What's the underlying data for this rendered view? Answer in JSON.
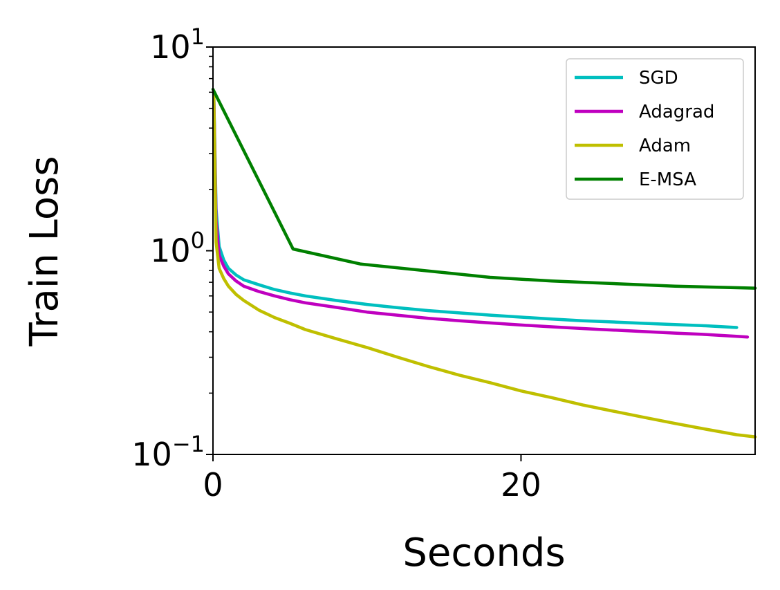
{
  "chart_data": {
    "type": "line",
    "xlabel": "Seconds",
    "ylabel": "Train Loss",
    "yscale": "log",
    "xlim": [
      0,
      35.2
    ],
    "ylim": [
      0.1,
      10
    ],
    "x_ticks": [
      {
        "value": 0,
        "label": "0"
      },
      {
        "value": 20,
        "label": "20"
      }
    ],
    "y_ticks": [
      {
        "value": 0.1,
        "base": "10",
        "exp": "−1"
      },
      {
        "value": 1,
        "base": "10",
        "exp": "0"
      },
      {
        "value": 10,
        "base": "10",
        "exp": "1"
      }
    ],
    "legend_position": "top-right",
    "grid": false,
    "series": [
      {
        "name": "SGD",
        "color": "#00bfbf",
        "x": [
          0.05,
          0.2,
          0.4,
          0.7,
          1.0,
          1.5,
          2.0,
          3.0,
          4.0,
          5.0,
          6.0,
          8.0,
          10.0,
          12.0,
          14.0,
          16.0,
          18.0,
          20.0,
          22.0,
          24.0,
          26.0,
          28.0,
          30.0,
          32.0,
          34.0
        ],
        "y": [
          6.0,
          1.6,
          1.05,
          0.9,
          0.82,
          0.76,
          0.72,
          0.68,
          0.645,
          0.62,
          0.6,
          0.57,
          0.545,
          0.525,
          0.508,
          0.495,
          0.483,
          0.472,
          0.462,
          0.453,
          0.447,
          0.44,
          0.434,
          0.428,
          0.42
        ]
      },
      {
        "name": "Adagrad",
        "color": "#bf00bf",
        "x": [
          0.05,
          0.2,
          0.4,
          0.7,
          1.0,
          1.5,
          2.0,
          3.0,
          4.0,
          5.0,
          6.0,
          8.0,
          10.0,
          12.0,
          14.0,
          16.0,
          18.0,
          20.0,
          22.0,
          24.0,
          26.0,
          28.0,
          30.0,
          32.0,
          34.0,
          34.7
        ],
        "y": [
          6.0,
          1.4,
          0.95,
          0.84,
          0.77,
          0.71,
          0.67,
          0.63,
          0.6,
          0.575,
          0.555,
          0.527,
          0.5,
          0.482,
          0.466,
          0.453,
          0.442,
          0.432,
          0.423,
          0.415,
          0.408,
          0.401,
          0.394,
          0.388,
          0.38,
          0.377
        ]
      },
      {
        "name": "Adam",
        "color": "#bfbf00",
        "x": [
          0.05,
          0.2,
          0.4,
          0.7,
          1.0,
          1.5,
          2.0,
          3.0,
          4.0,
          5.0,
          6.0,
          8.0,
          10.0,
          12.0,
          14.0,
          16.0,
          18.0,
          20.0,
          22.0,
          24.0,
          26.0,
          28.0,
          30.0,
          32.0,
          34.0,
          35.2
        ],
        "y": [
          6.0,
          1.1,
          0.82,
          0.73,
          0.67,
          0.61,
          0.57,
          0.51,
          0.47,
          0.44,
          0.41,
          0.37,
          0.335,
          0.3,
          0.27,
          0.245,
          0.225,
          0.205,
          0.19,
          0.175,
          0.163,
          0.152,
          0.142,
          0.133,
          0.125,
          0.122
        ]
      },
      {
        "name": "E-MSA",
        "color": "#008000",
        "x": [
          0,
          5.2,
          9.6,
          18.0,
          22.0,
          26.0,
          30.0,
          35.2
        ],
        "y": [
          6.2,
          1.02,
          0.86,
          0.74,
          0.71,
          0.69,
          0.67,
          0.655
        ]
      }
    ]
  }
}
